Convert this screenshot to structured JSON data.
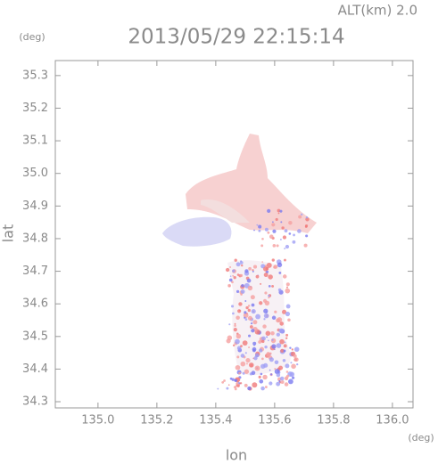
{
  "chart_data": {
    "type": "map",
    "title": "2013/05/29 22:15:14",
    "subtitle": "ALT(km) 2.0",
    "x_label": "lon",
    "x_unit": "(deg)",
    "y_label": "lat",
    "y_unit": "(deg)",
    "xlim": [
      134.855,
      136.07
    ],
    "ylim": [
      34.281,
      35.346
    ],
    "xticks": [
      {
        "value": 135,
        "label": "135.0"
      },
      135.2,
      135.4,
      135.6,
      135.8,
      {
        "value": 136,
        "label": "136.0"
      }
    ],
    "yticks": [
      34.3,
      34.4,
      34.5,
      34.6,
      34.7,
      34.8,
      34.9,
      {
        "value": 35,
        "label": "35.0"
      },
      35.1,
      35.2,
      35.3
    ]
  }
}
